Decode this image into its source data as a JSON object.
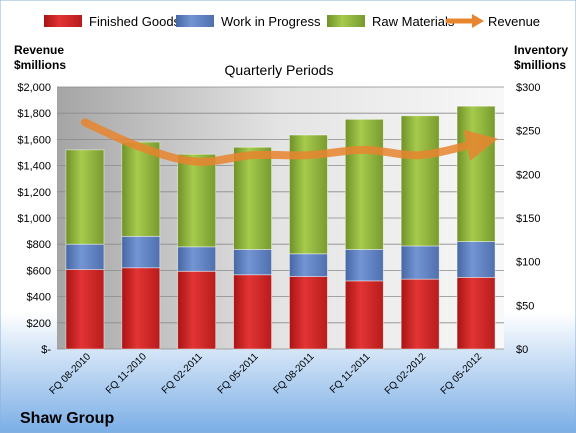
{
  "colors": {
    "finished_goods": "#d42a2a",
    "work_in_progress": "#5a7fc0",
    "raw_materials": "#8fb53c",
    "revenue": "#e8852f",
    "background_top": "#ffffff",
    "background_bottom": "#7aaee6"
  },
  "chart_data": {
    "type": "bar",
    "stacked": true,
    "title": "Quarterly Periods",
    "company_label": "Shaw Group",
    "left_axis_label": [
      "Revenue",
      "$millions"
    ],
    "right_axis_label": [
      "Inventory",
      "$millions"
    ],
    "categories": [
      "FQ 08-2010",
      "FQ 11-2010",
      "FQ 02-2011",
      "FQ 05-2011",
      "FQ 08-2011",
      "FQ 11-2011",
      "FQ 02-2012",
      "FQ 05-2012"
    ],
    "left_axis": {
      "range": [
        0,
        2000
      ],
      "tick_labels": [
        "$-",
        "$200",
        "$400",
        "$600",
        "$800",
        "$1,000",
        "$1,200",
        "$1,400",
        "$1,600",
        "$1,800",
        "$2,000"
      ]
    },
    "right_axis": {
      "range": [
        0,
        300
      ],
      "tick_labels": [
        "$0",
        "$50",
        "$100",
        "$150",
        "$200",
        "$250",
        "$300"
      ]
    },
    "series": [
      {
        "name": "Finished Goods",
        "axis": "right",
        "values": [
          91,
          93,
          89,
          85,
          83,
          78,
          80,
          82
        ]
      },
      {
        "name": "Work in Progress",
        "axis": "right",
        "values": [
          29,
          36,
          28,
          29,
          26,
          36,
          38,
          41
        ]
      },
      {
        "name": "Raw Materials",
        "axis": "right",
        "values": [
          108,
          108,
          106,
          117,
          136,
          149,
          149,
          155
        ]
      },
      {
        "name": "Revenue",
        "type": "line",
        "axis": "left",
        "values": [
          1730,
          1540,
          1430,
          1480,
          1480,
          1520,
          1480,
          1570
        ]
      }
    ],
    "legend": {
      "position": "top",
      "entries": [
        "Finished Goods",
        "Work in Progress",
        "Raw Materials",
        "Revenue"
      ]
    },
    "grid": true
  }
}
